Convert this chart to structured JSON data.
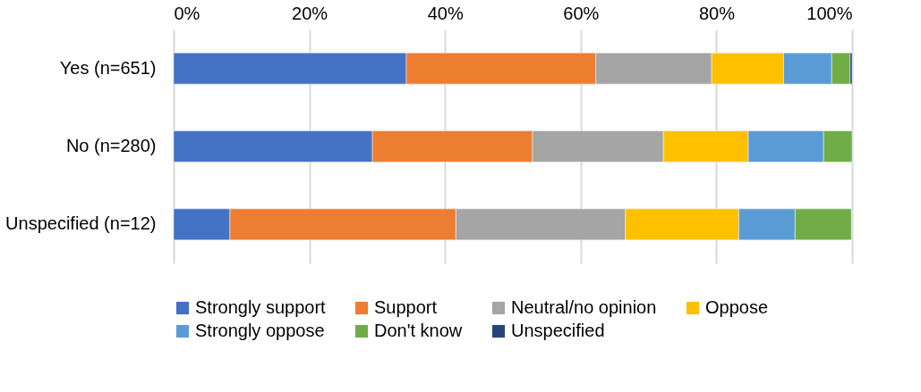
{
  "chart_data": {
    "type": "bar",
    "orientation": "horizontal",
    "stacked": true,
    "categories": [
      "Yes (n=651)",
      "No (n=280)",
      "Unspecified (n=12)"
    ],
    "series": [
      {
        "name": "Strongly support",
        "color": "#4472c4",
        "values": [
          34.3,
          29.3,
          8.3
        ]
      },
      {
        "name": "Support",
        "color": "#ed7d31",
        "values": [
          27.9,
          23.6,
          33.3
        ]
      },
      {
        "name": "Neutral/no opinion",
        "color": "#a5a5a5",
        "values": [
          17.1,
          19.3,
          25.0
        ]
      },
      {
        "name": "Oppose",
        "color": "#ffc000",
        "values": [
          10.6,
          12.5,
          16.7
        ]
      },
      {
        "name": "Strongly oppose",
        "color": "#5b9bd5",
        "values": [
          7.1,
          11.1,
          8.3
        ]
      },
      {
        "name": "Don't know",
        "color": "#70ad47",
        "values": [
          2.7,
          4.2,
          8.3
        ]
      },
      {
        "name": "Unspecified",
        "color": "#264478",
        "values": [
          0.3,
          null,
          null
        ]
      }
    ],
    "xlim": [
      0,
      100
    ],
    "xticks": [
      {
        "value": 0,
        "label": "0%"
      },
      {
        "value": 20,
        "label": "20%"
      },
      {
        "value": 40,
        "label": "40%"
      },
      {
        "value": 60,
        "label": "60%"
      },
      {
        "value": 80,
        "label": "80%"
      },
      {
        "value": 100,
        "label": "100%"
      }
    ],
    "grid": "x",
    "legend": "bottom"
  }
}
